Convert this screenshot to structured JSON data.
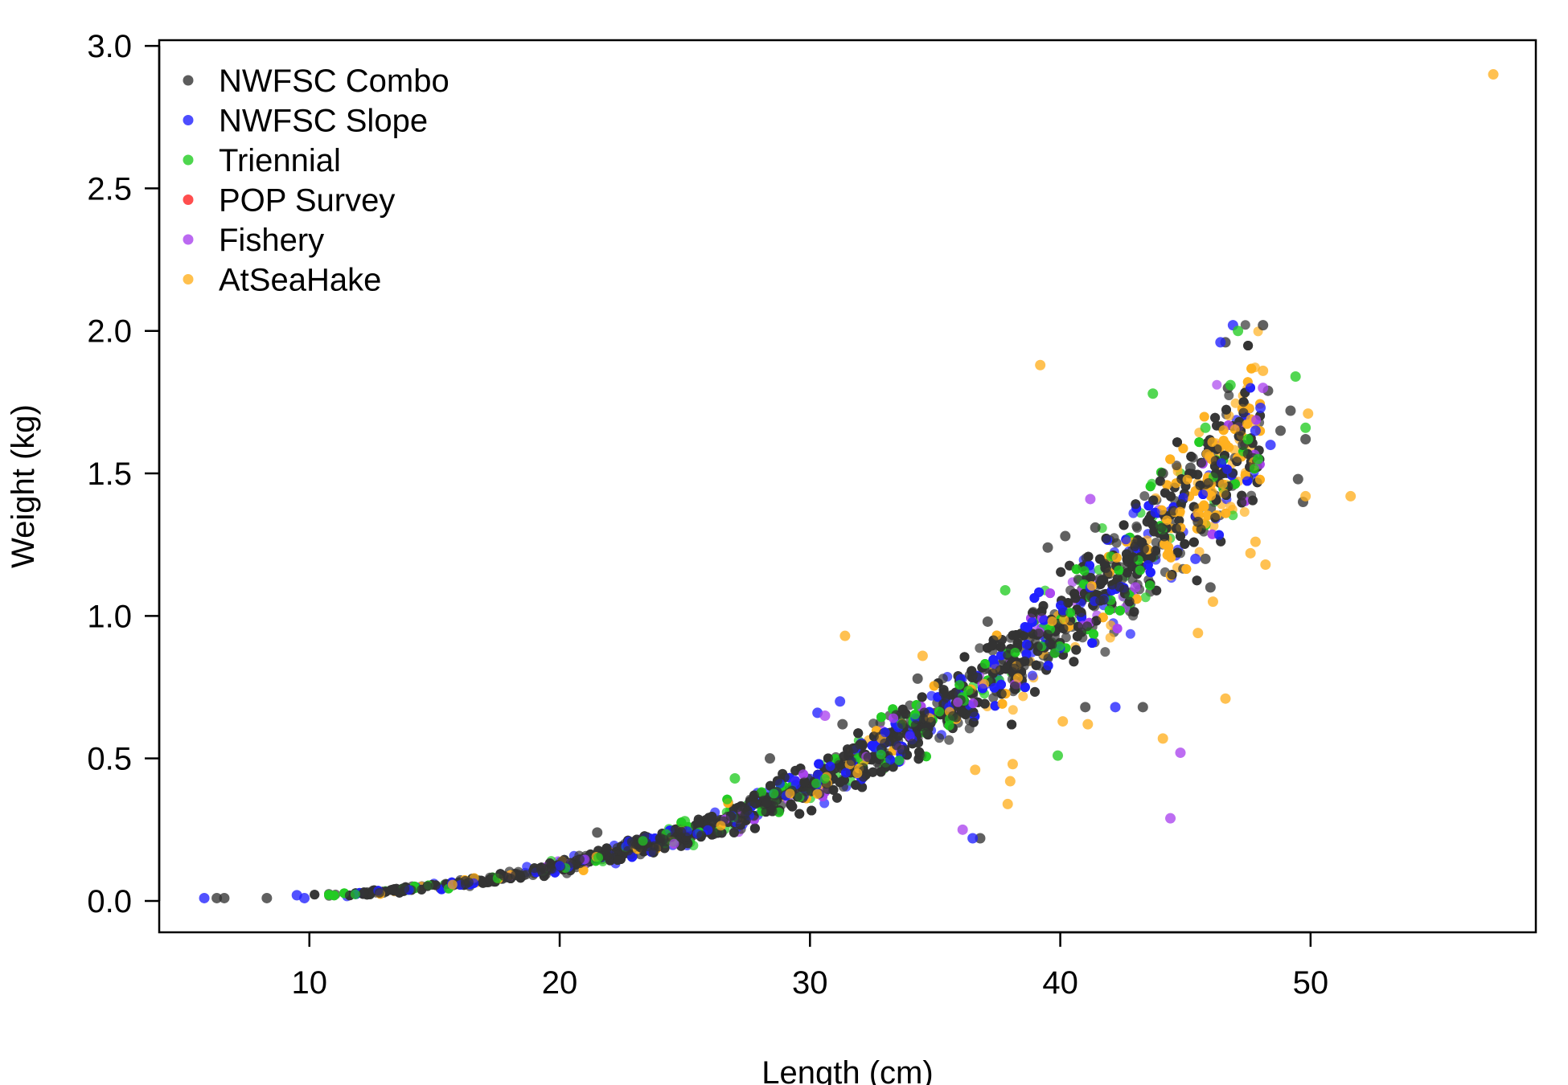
{
  "chart_data": {
    "type": "scatter",
    "title": "",
    "xlabel": "Length (cm)",
    "ylabel": "Weight (kg)",
    "xlim": [
      4,
      59
    ],
    "ylim": [
      -0.11,
      3.02
    ],
    "xticks": [
      10,
      20,
      30,
      40,
      50
    ],
    "yticks": [
      0.0,
      0.5,
      1.0,
      1.5,
      2.0,
      2.5,
      3.0
    ],
    "xtick_labels": [
      "10",
      "20",
      "30",
      "40",
      "50"
    ],
    "ytick_labels": [
      "0.0",
      "0.5",
      "1.0",
      "1.5",
      "2.0",
      "2.5",
      "3.0"
    ],
    "grid": false,
    "legend_position": "top-left",
    "trend": {
      "a": 1.52e-05,
      "b": 3.0
    },
    "series": [
      {
        "name": "NWFSC Combo",
        "color": "#333333",
        "points": [
          [
            6.3,
            0.01
          ],
          [
            6.6,
            0.01
          ],
          [
            8.3,
            0.01
          ],
          [
            21.5,
            0.24
          ],
          [
            28.4,
            0.5
          ],
          [
            31.3,
            0.62
          ],
          [
            34.3,
            0.78
          ],
          [
            36.8,
            0.22
          ],
          [
            37.1,
            0.98
          ],
          [
            39.5,
            1.24
          ],
          [
            40.2,
            1.28
          ],
          [
            41.0,
            0.68
          ],
          [
            41.4,
            1.31
          ],
          [
            43.3,
            0.68
          ],
          [
            44.1,
            1.5
          ],
          [
            45.2,
            1.52
          ],
          [
            45.5,
            1.33
          ],
          [
            45.8,
            1.2
          ],
          [
            46.0,
            1.1
          ],
          [
            46.6,
            1.96
          ],
          [
            46.7,
            1.8
          ],
          [
            47.3,
            1.6
          ],
          [
            48.1,
            2.02
          ],
          [
            48.3,
            1.79
          ],
          [
            48.8,
            1.65
          ],
          [
            49.2,
            1.72
          ],
          [
            49.5,
            1.48
          ],
          [
            49.7,
            1.4
          ],
          [
            49.8,
            1.62
          ]
        ]
      },
      {
        "name": "NWFSC Slope",
        "color": "#2020ff",
        "points": [
          [
            5.8,
            0.01
          ],
          [
            9.5,
            0.02
          ],
          [
            9.8,
            0.01
          ],
          [
            30.3,
            0.66
          ],
          [
            31.2,
            0.7
          ],
          [
            36.5,
            0.22
          ],
          [
            42.2,
            0.68
          ],
          [
            45.4,
            1.2
          ],
          [
            46.4,
            1.96
          ],
          [
            46.9,
            2.02
          ],
          [
            47.8,
            1.65
          ],
          [
            48.0,
            1.73
          ],
          [
            48.4,
            1.6
          ]
        ]
      },
      {
        "name": "Triennial",
        "color": "#22cc22",
        "points": [
          [
            25.0,
            0.28
          ],
          [
            27.0,
            0.43
          ],
          [
            37.8,
            1.09
          ],
          [
            39.9,
            0.51
          ],
          [
            43.7,
            1.78
          ],
          [
            45.8,
            1.66
          ],
          [
            46.8,
            1.81
          ],
          [
            47.1,
            2.0
          ],
          [
            47.5,
            1.62
          ],
          [
            49.4,
            1.84
          ],
          [
            49.8,
            1.66
          ],
          [
            47.9,
            1.55
          ]
        ]
      },
      {
        "name": "POP Survey",
        "color": "#ff2222",
        "points": []
      },
      {
        "name": "Fishery",
        "color": "#aa44ee",
        "points": [
          [
            30.6,
            0.65
          ],
          [
            36.1,
            0.25
          ],
          [
            41.2,
            1.41
          ],
          [
            44.4,
            0.29
          ],
          [
            44.8,
            0.52
          ],
          [
            48.1,
            1.8
          ],
          [
            43.0,
            1.1
          ]
        ]
      },
      {
        "name": "AtSeaHake",
        "color": "#ffb020",
        "points": [
          [
            31.4,
            0.93
          ],
          [
            34.5,
            0.86
          ],
          [
            36.6,
            0.46
          ],
          [
            37.9,
            0.34
          ],
          [
            38.0,
            0.42
          ],
          [
            38.1,
            0.48
          ],
          [
            39.2,
            1.88
          ],
          [
            40.1,
            0.63
          ],
          [
            41.1,
            0.62
          ],
          [
            44.1,
            0.57
          ],
          [
            45.5,
            0.94
          ],
          [
            46.1,
            1.05
          ],
          [
            46.6,
            0.71
          ],
          [
            47.6,
            1.22
          ],
          [
            47.8,
            1.26
          ],
          [
            48.1,
            1.86
          ],
          [
            48.2,
            1.18
          ],
          [
            49.8,
            1.42
          ],
          [
            49.9,
            1.71
          ],
          [
            51.6,
            1.42
          ],
          [
            57.3,
            2.9
          ]
        ]
      }
    ]
  }
}
